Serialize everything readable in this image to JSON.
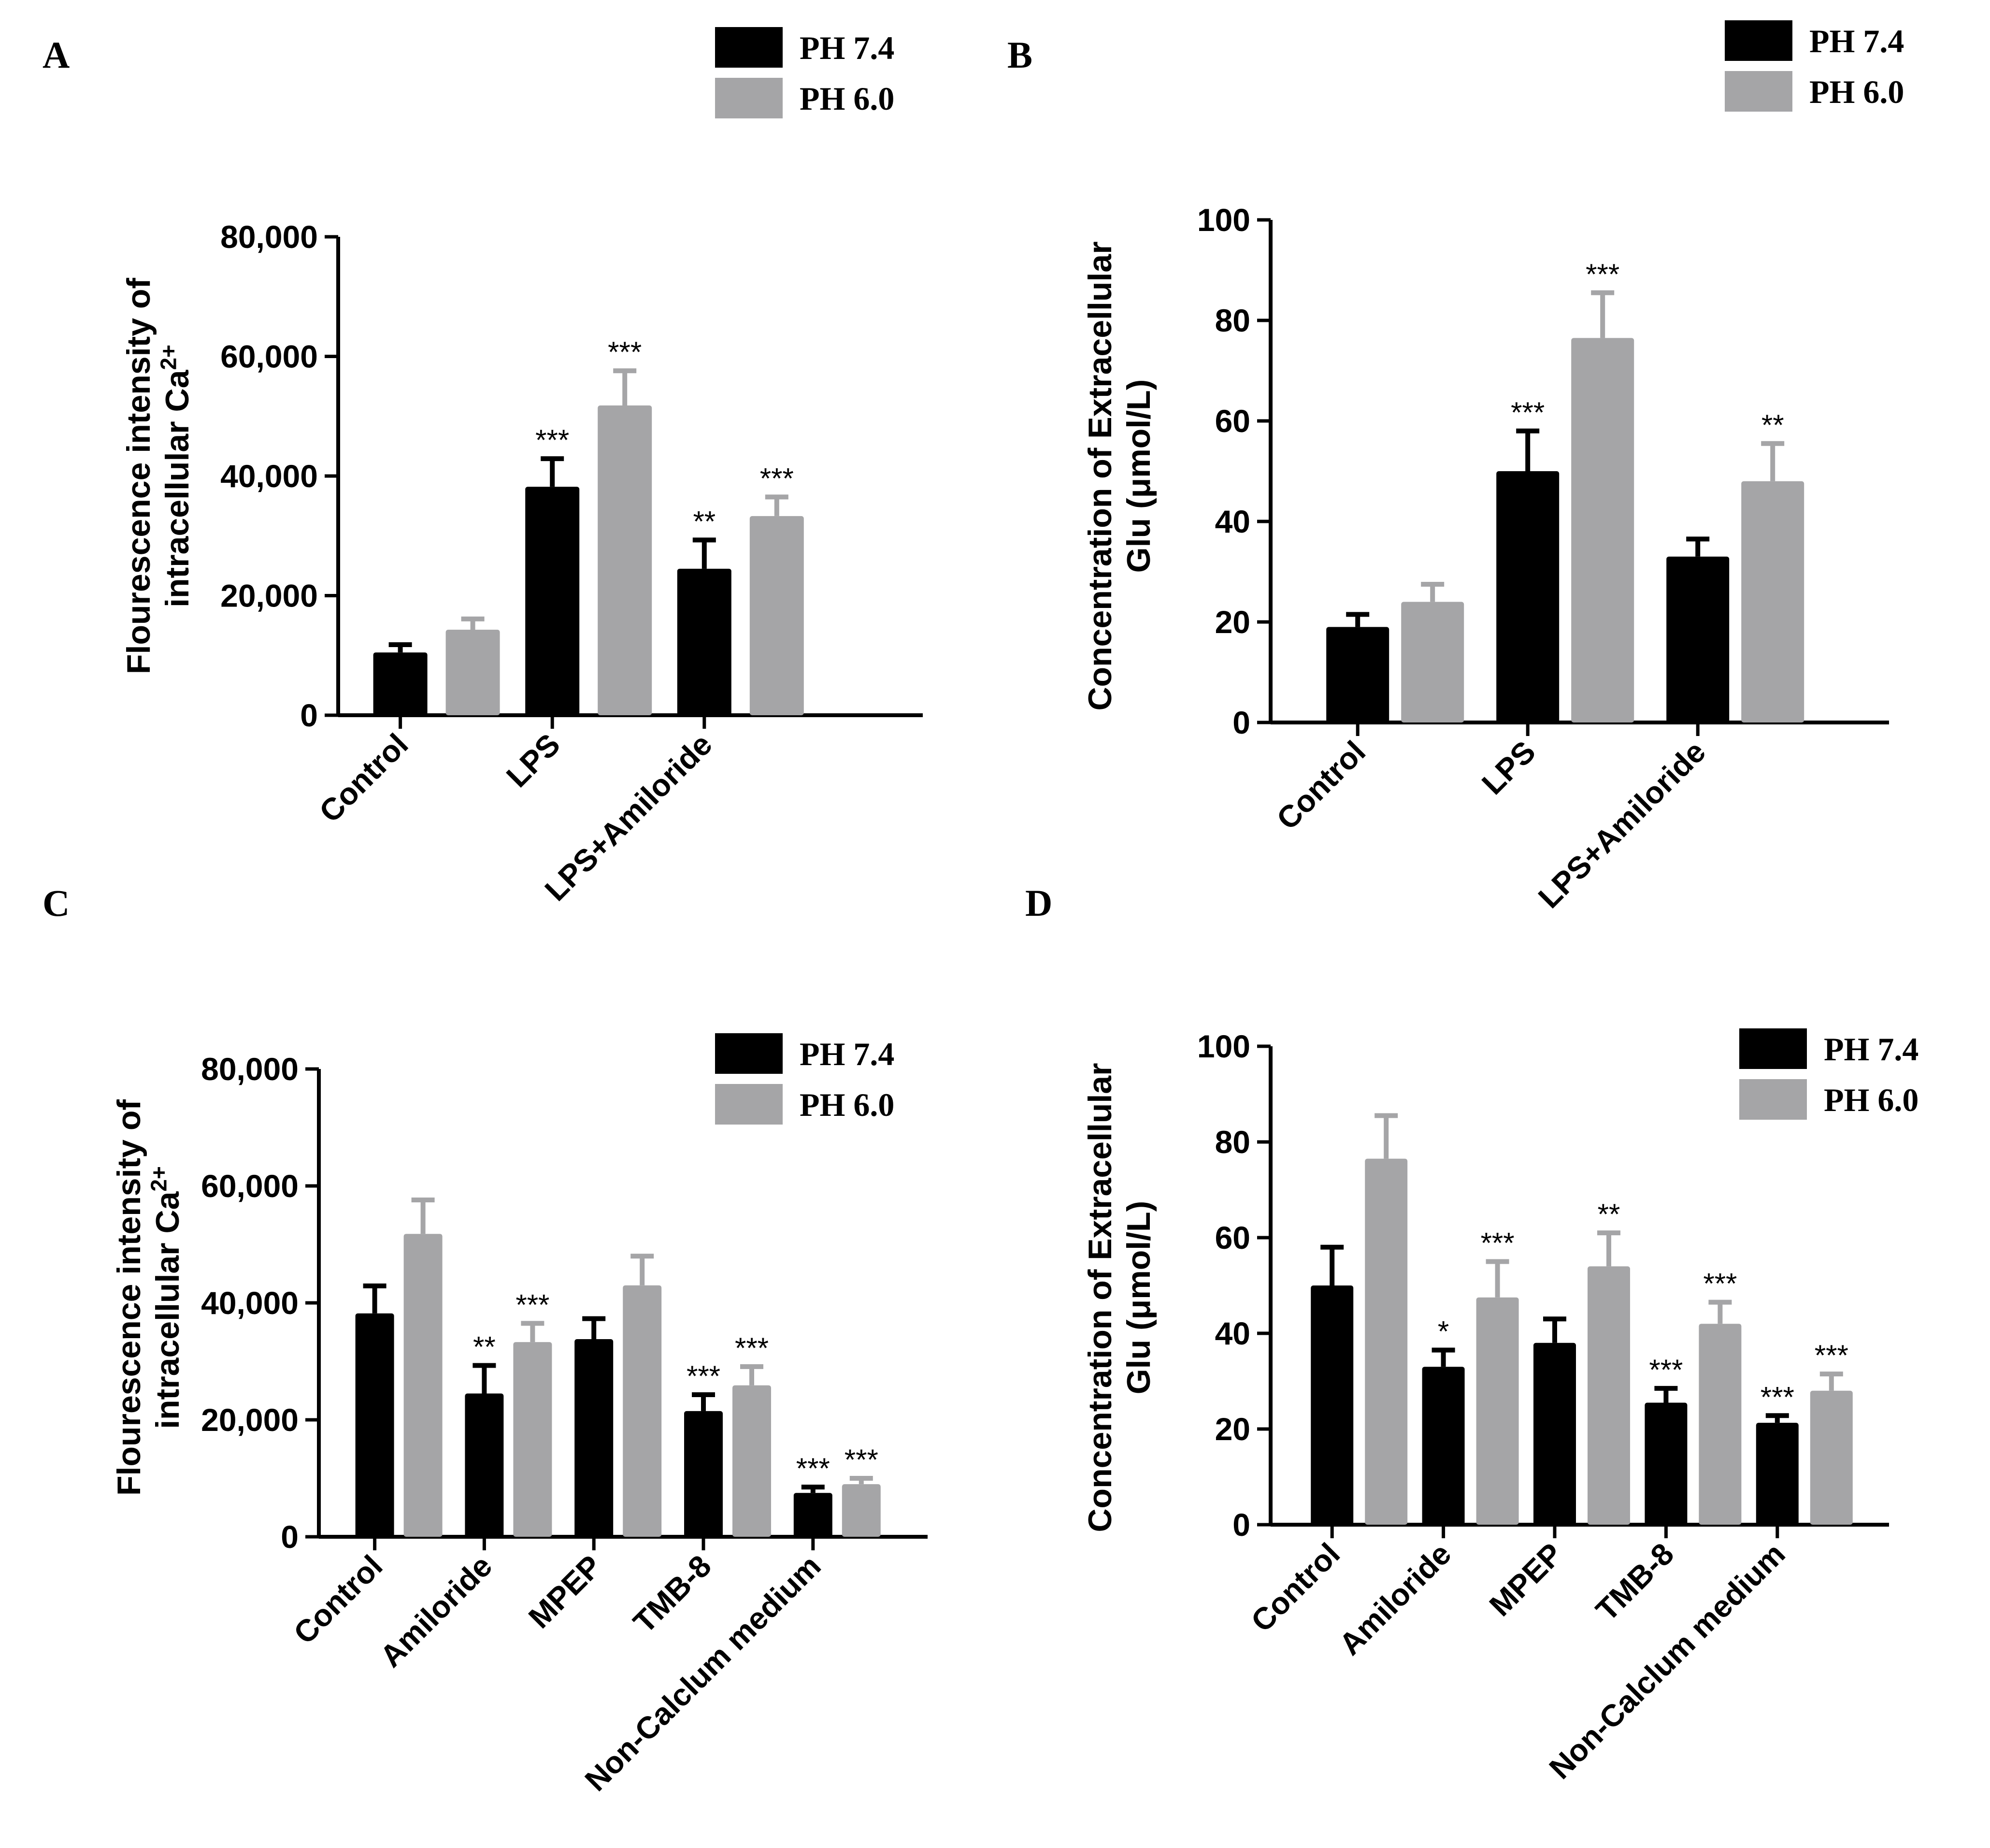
{
  "colors": {
    "ph74": "#000000",
    "ph60": "#a5a5a7",
    "axis": "#000000"
  },
  "chart_data": [
    {
      "panel": "A",
      "type": "bar",
      "legend": [
        "PH 7.4",
        "PH 6.0"
      ],
      "ylabel": [
        "Flourescence intensity of",
        "intracellular Ca",
        "2+"
      ],
      "yticks": [
        "0",
        "20,000",
        "40,000",
        "60,000",
        "80,000"
      ],
      "ylim": [
        0,
        80000
      ],
      "categories": [
        "Control",
        "LPS",
        "LPS+Amiloride"
      ],
      "series": [
        {
          "name": "PH 7.4",
          "values": [
            10500,
            38200,
            24500
          ],
          "errors": [
            1300,
            4700,
            4800
          ],
          "sig": [
            "",
            "***",
            "**"
          ]
        },
        {
          "name": "PH 6.0",
          "values": [
            14300,
            51800,
            33300
          ],
          "errors": [
            1800,
            5800,
            3200
          ],
          "sig": [
            "",
            "***",
            "***"
          ]
        }
      ]
    },
    {
      "panel": "B",
      "type": "bar",
      "legend": [
        "PH 7.4",
        "PH 6.0"
      ],
      "ylabel": [
        "Concentration of Extracellular",
        "Glu (μmol/L)"
      ],
      "yticks": [
        "0",
        "20",
        "40",
        "60",
        "80",
        "100"
      ],
      "ylim": [
        0,
        100
      ],
      "categories": [
        "Control",
        "LPS",
        "LPS+Amiloride"
      ],
      "series": [
        {
          "name": "PH 7.4",
          "values": [
            19,
            50,
            33
          ],
          "errors": [
            2.5,
            8,
            3.5
          ],
          "sig": [
            "",
            "***",
            ""
          ]
        },
        {
          "name": "PH 6.0",
          "values": [
            24,
            76.5,
            48
          ],
          "errors": [
            3.5,
            9,
            7.5
          ],
          "sig": [
            "",
            "***",
            "**"
          ]
        }
      ]
    },
    {
      "panel": "C",
      "type": "bar",
      "legend": [
        "PH 7.4",
        "PH 6.0"
      ],
      "ylabel": [
        "Flourescence intensity of",
        "intracellular Ca",
        "2+"
      ],
      "yticks": [
        "0",
        "20,000",
        "40,000",
        "60,000",
        "80,000"
      ],
      "ylim": [
        0,
        80000
      ],
      "categories": [
        "Control",
        "Amiloride",
        "MPEP",
        "TMB-8",
        "Non-Calclum medium"
      ],
      "series": [
        {
          "name": "PH 7.4",
          "values": [
            38200,
            24500,
            33800,
            21500,
            7500
          ],
          "errors": [
            4700,
            4800,
            3500,
            2800,
            1000
          ],
          "sig": [
            "",
            "**",
            "",
            "***",
            "***"
          ]
        },
        {
          "name": "PH 6.0",
          "values": [
            51800,
            33300,
            43000,
            25900,
            9000
          ],
          "errors": [
            5800,
            3200,
            5000,
            3200,
            1000
          ],
          "sig": [
            "",
            "***",
            "",
            "***",
            "***"
          ]
        }
      ]
    },
    {
      "panel": "D",
      "type": "bar",
      "legend": [
        "PH 7.4",
        "PH 6.0"
      ],
      "ylabel": [
        "Concentration of Extracellular",
        "Glu (μmol/L)"
      ],
      "yticks": [
        "0",
        "20",
        "40",
        "60",
        "80",
        "100"
      ],
      "ylim": [
        0,
        100
      ],
      "categories": [
        "Control",
        "Amiloride",
        "MPEP",
        "TMB-8",
        "Non-Calclum medium"
      ],
      "series": [
        {
          "name": "PH 7.4",
          "values": [
            50,
            33,
            38,
            25.5,
            21.3
          ],
          "errors": [
            8,
            3.5,
            5,
            3,
            1.5
          ],
          "sig": [
            "",
            "*",
            "",
            "***",
            "***"
          ]
        },
        {
          "name": "PH 6.0",
          "values": [
            76.5,
            47.5,
            54,
            42,
            28
          ],
          "errors": [
            9,
            7.5,
            7,
            4.5,
            3.5
          ],
          "sig": [
            "",
            "***",
            "**",
            "***",
            "***"
          ]
        }
      ]
    }
  ]
}
